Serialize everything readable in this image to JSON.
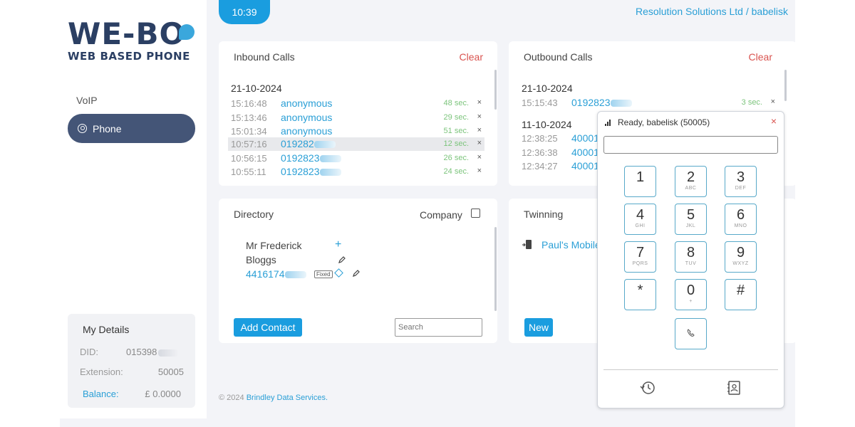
{
  "header": {
    "clock": "10:39",
    "org": "Resolution Solutions Ltd / babelisk"
  },
  "logo": {
    "main": "WE-BO",
    "sub": "WEB BASED PHONE"
  },
  "nav": {
    "section": "VoIP",
    "phone": "Phone"
  },
  "my_details": {
    "title": "My Details",
    "did_label": "DID:",
    "did_value": "015398",
    "ext_label": "Extension:",
    "ext_value": "50005",
    "balance_label": "Balance:",
    "balance_value": "£ 0.0000"
  },
  "inbound": {
    "title": "Inbound Calls",
    "clear": "Clear",
    "date": "21-10-2024",
    "calls": [
      {
        "time": "15:16:48",
        "number": "anonymous",
        "duration": "48 sec.",
        "remove": "×"
      },
      {
        "time": "15:13:46",
        "number": "anonymous",
        "duration": "29 sec.",
        "remove": "×"
      },
      {
        "time": "15:01:34",
        "number": "anonymous",
        "duration": "51 sec.",
        "remove": "×"
      },
      {
        "time": "10:57:16",
        "number": "019282",
        "duration": "12 sec.",
        "remove": "×"
      },
      {
        "time": "10:56:15",
        "number": "0192823",
        "duration": "26 sec.",
        "remove": "×"
      },
      {
        "time": "10:55:11",
        "number": "0192823",
        "duration": "24 sec.",
        "remove": "×"
      }
    ]
  },
  "outbound": {
    "title": "Outbound Calls",
    "clear": "Clear",
    "date1": "21-10-2024",
    "date2": "11-10-2024",
    "calls": [
      {
        "time": "15:15:43",
        "number": "0192823",
        "duration": "3 sec.",
        "remove": "×"
      },
      {
        "time": "12:38:25",
        "number": "40001"
      },
      {
        "time": "12:36:38",
        "number": "40001"
      },
      {
        "time": "12:34:27",
        "number": "40001"
      }
    ]
  },
  "directory": {
    "title": "Directory",
    "company_label": "Company",
    "contact": {
      "first": "Mr Frederick",
      "last": "Bloggs",
      "number": "4416174",
      "tag": "Fixed"
    },
    "add_label": "Add Contact",
    "search_placeholder": "Search"
  },
  "twinning": {
    "title": "Twinning",
    "device": "Paul's Mobile",
    "new_label": "New"
  },
  "dialer": {
    "status": "Ready, babelisk (50005)",
    "close": "×",
    "keys": [
      {
        "k": "1",
        "s": ""
      },
      {
        "k": "2",
        "s": "ABC"
      },
      {
        "k": "3",
        "s": "DEF"
      },
      {
        "k": "4",
        "s": "GHI"
      },
      {
        "k": "5",
        "s": "JKL"
      },
      {
        "k": "6",
        "s": "MNO"
      },
      {
        "k": "7",
        "s": "PQRS"
      },
      {
        "k": "8",
        "s": "TUV"
      },
      {
        "k": "9",
        "s": "WXYZ"
      },
      {
        "k": "*",
        "s": ""
      },
      {
        "k": "0",
        "s": "+"
      },
      {
        "k": "#",
        "s": ""
      }
    ]
  },
  "footer": {
    "copyright": "© 2024",
    "company": "Brindley Data Services."
  }
}
